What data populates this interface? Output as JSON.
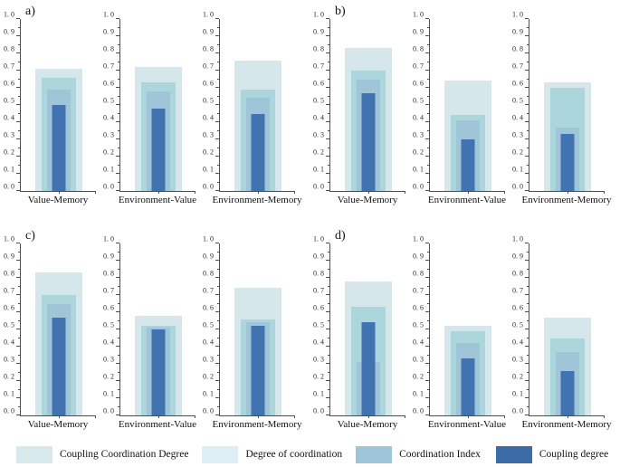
{
  "axis": {
    "ylim": [
      0,
      1
    ],
    "ytick_step": 0.1,
    "ytick_labels": [
      "0. 0",
      "0. 1",
      "0. 2",
      "0. 3",
      "0. 4",
      "0. 5",
      "0. 6",
      "0. 7",
      "0. 8",
      "0. 9",
      "1. 0"
    ]
  },
  "chart_data": [
    {
      "panel_label": "a)",
      "type": "bar",
      "categories": [
        "Value-Memory",
        "Environment-Value",
        "Environment-Memory"
      ],
      "ylim": [
        0,
        1
      ],
      "series": [
        {
          "name": "Coupling Coordination Degree",
          "values": [
            0.71,
            0.72,
            0.76
          ]
        },
        {
          "name": "Degree of coordination",
          "values": [
            0.66,
            0.63,
            0.59
          ]
        },
        {
          "name": "Coordination Index",
          "values": [
            0.59,
            0.58,
            0.54
          ]
        },
        {
          "name": "Coupling degree",
          "values": [
            0.5,
            0.48,
            0.45
          ]
        }
      ]
    },
    {
      "panel_label": "b)",
      "type": "bar",
      "categories": [
        "Value-Memory",
        "Environment-Value",
        "Environment-Memory"
      ],
      "ylim": [
        0,
        1
      ],
      "series": [
        {
          "name": "Coupling Coordination Degree",
          "values": [
            0.83,
            0.64,
            0.63
          ]
        },
        {
          "name": "Degree of coordination",
          "values": [
            0.7,
            0.44,
            0.6
          ]
        },
        {
          "name": "Coordination Index",
          "values": [
            0.65,
            0.41,
            0.37
          ]
        },
        {
          "name": "Coupling degree",
          "values": [
            0.57,
            0.3,
            0.33
          ]
        }
      ]
    },
    {
      "panel_label": "c)",
      "type": "bar",
      "categories": [
        "Value-Memory",
        "Environment-Value",
        "Environment-Memory"
      ],
      "ylim": [
        0,
        1
      ],
      "series": [
        {
          "name": "Coupling Coordination Degree",
          "values": [
            0.83,
            0.58,
            0.74
          ]
        },
        {
          "name": "Degree of coordination",
          "values": [
            0.7,
            0.52,
            0.56
          ]
        },
        {
          "name": "Coordination Index",
          "values": [
            0.65,
            0.51,
            0.54
          ]
        },
        {
          "name": "Coupling degree",
          "values": [
            0.57,
            0.5,
            0.52
          ]
        }
      ]
    },
    {
      "panel_label": "d)",
      "type": "bar",
      "categories": [
        "Value-Memory",
        "Environment-Value",
        "Environment-Memory"
      ],
      "ylim": [
        0,
        1
      ],
      "series": [
        {
          "name": "Coupling Coordination Degree",
          "values": [
            0.78,
            0.52,
            0.57
          ]
        },
        {
          "name": "Degree of coordination",
          "values": [
            0.63,
            0.49,
            0.45
          ]
        },
        {
          "name": "Coordination Index",
          "values": [
            0.31,
            0.42,
            0.37
          ]
        },
        {
          "name": "Coupling degree",
          "values": [
            0.54,
            0.33,
            0.26
          ]
        }
      ]
    }
  ],
  "bar_colors": {
    "Coupling Coordination Degree": "#d6e7eb",
    "Degree of coordination": "#abd6db",
    "Coordination Index": "#a0c4d8",
    "Coupling degree": "#4173b0"
  },
  "legend": {
    "items": [
      {
        "label": "Coupling Coordination Degree",
        "color": "#d8e9ec"
      },
      {
        "label": "Degree of coordination",
        "color": "#ddeff4"
      },
      {
        "label": "Coordination Index",
        "color": "#9fc6d8"
      },
      {
        "label": "Coupling degree",
        "color": "#3c6ca8"
      }
    ]
  }
}
